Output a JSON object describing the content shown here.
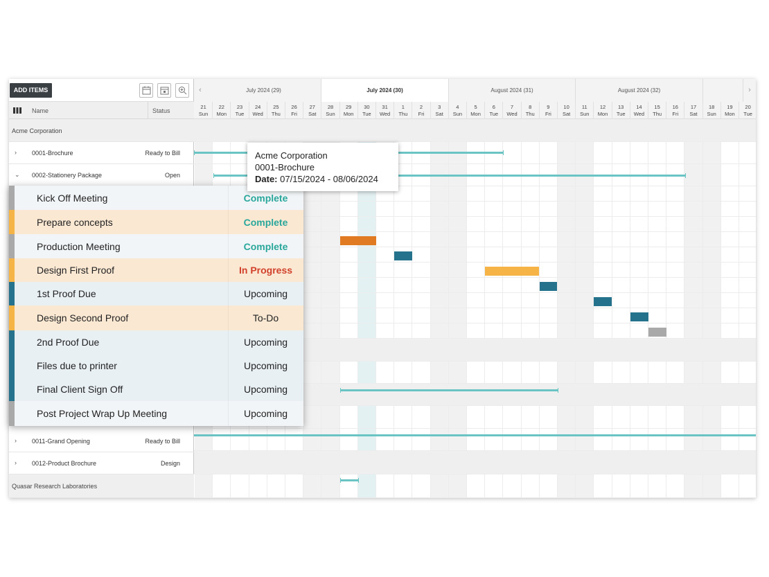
{
  "toolbar": {
    "add_items_label": "ADD ITEMS"
  },
  "columns": {
    "name": "Name",
    "status": "Status"
  },
  "rows": [
    {
      "type": "group",
      "name": "Acme Corporation"
    },
    {
      "type": "project",
      "chev": "›",
      "name": "0001-Brochure",
      "status": "Ready to Bill"
    },
    {
      "type": "project",
      "chev": "⌄",
      "name": "0002-Stationery Package",
      "status": "Open"
    },
    {
      "type": "project",
      "chev": "›",
      "name": "0011-Grand Opening",
      "status": "Ready to Bill"
    },
    {
      "type": "project",
      "chev": "›",
      "name": "0012-Product Brochure",
      "status": "Design"
    },
    {
      "type": "group",
      "name": "Quasar Research Laboratories"
    }
  ],
  "months": [
    {
      "label": "July 2024 (29)"
    },
    {
      "label": "July 2024 (30)"
    },
    {
      "label": "August 2024 (31)"
    },
    {
      "label": "August 2024 (32)"
    }
  ],
  "days": [
    {
      "d": "21",
      "w": "Sun"
    },
    {
      "d": "22",
      "w": "Mon"
    },
    {
      "d": "23",
      "w": "Tue"
    },
    {
      "d": "24",
      "w": "Wed"
    },
    {
      "d": "25",
      "w": "Thu"
    },
    {
      "d": "26",
      "w": "Fri"
    },
    {
      "d": "27",
      "w": "Sat"
    },
    {
      "d": "28",
      "w": "Sun"
    },
    {
      "d": "29",
      "w": "Mon"
    },
    {
      "d": "30",
      "w": "Tue"
    },
    {
      "d": "31",
      "w": "Wed"
    },
    {
      "d": "1",
      "w": "Thu"
    },
    {
      "d": "2",
      "w": "Fri"
    },
    {
      "d": "3",
      "w": "Sat"
    },
    {
      "d": "4",
      "w": "Sun"
    },
    {
      "d": "5",
      "w": "Mon"
    },
    {
      "d": "6",
      "w": "Tue"
    },
    {
      "d": "7",
      "w": "Wed"
    },
    {
      "d": "8",
      "w": "Thu"
    },
    {
      "d": "9",
      "w": "Fri"
    },
    {
      "d": "10",
      "w": "Sat"
    },
    {
      "d": "11",
      "w": "Sun"
    },
    {
      "d": "12",
      "w": "Mon"
    },
    {
      "d": "13",
      "w": "Tue"
    },
    {
      "d": "14",
      "w": "Wed"
    },
    {
      "d": "15",
      "w": "Thu"
    },
    {
      "d": "16",
      "w": "Fri"
    },
    {
      "d": "17",
      "w": "Sat"
    },
    {
      "d": "18",
      "w": "Sun"
    },
    {
      "d": "19",
      "w": "Mon"
    },
    {
      "d": "20",
      "w": "Tue"
    }
  ],
  "tasks": [
    {
      "name": "Kick Off Meeting",
      "status": "Complete",
      "stripe": "#a9a9a9",
      "bg": "#f2f5f7",
      "color": "#2aa79b",
      "bold": true
    },
    {
      "name": "Prepare concepts",
      "status": "Complete",
      "stripe": "#f5b445",
      "bg": "#fae8d3",
      "color": "#2aa79b",
      "bold": true
    },
    {
      "name": "Production Meeting",
      "status": "Complete",
      "stripe": "#a9a9a9",
      "bg": "#f2f5f7",
      "color": "#2aa79b",
      "bold": true
    },
    {
      "name": "Design First Proof",
      "status": "In Progress",
      "stripe": "#f5b445",
      "bg": "#fae8d3",
      "color": "#d1412b",
      "bold": true
    },
    {
      "name": "1st Proof Due",
      "status": "Upcoming",
      "stripe": "#25728c",
      "bg": "#e9f0f4",
      "color": "#222",
      "bold": false
    },
    {
      "name": "Design Second Proof",
      "status": "To-Do",
      "stripe": "#f5b445",
      "bg": "#fae8d3",
      "color": "#222",
      "bold": false
    },
    {
      "name": "2nd Proof Due",
      "status": "Upcoming",
      "stripe": "#25728c",
      "bg": "#e9f0f4",
      "color": "#222",
      "bold": false
    },
    {
      "name": "Files due to printer",
      "status": "Upcoming",
      "stripe": "#25728c",
      "bg": "#e9f0f4",
      "color": "#222",
      "bold": false
    },
    {
      "name": "Final Client Sign Off",
      "status": "Upcoming",
      "stripe": "#25728c",
      "bg": "#e9f0f4",
      "color": "#222",
      "bold": false
    },
    {
      "name": "Post Project Wrap Up Meeting",
      "status": "Upcoming",
      "stripe": "#a9a9a9",
      "bg": "#f2f5f7",
      "color": "#222",
      "bold": false
    }
  ],
  "tooltip": {
    "line1": "Acme Corporation",
    "line2": "0001-Brochure",
    "date_label": "Date:",
    "date_value": "07/15/2024 - 08/06/2024"
  },
  "colors": {
    "teal_line": "#6bc4c4",
    "dark_teal": "#25728c",
    "orange": "#e07b24",
    "yellow": "#f5b445",
    "gray": "#a9a9a9"
  }
}
